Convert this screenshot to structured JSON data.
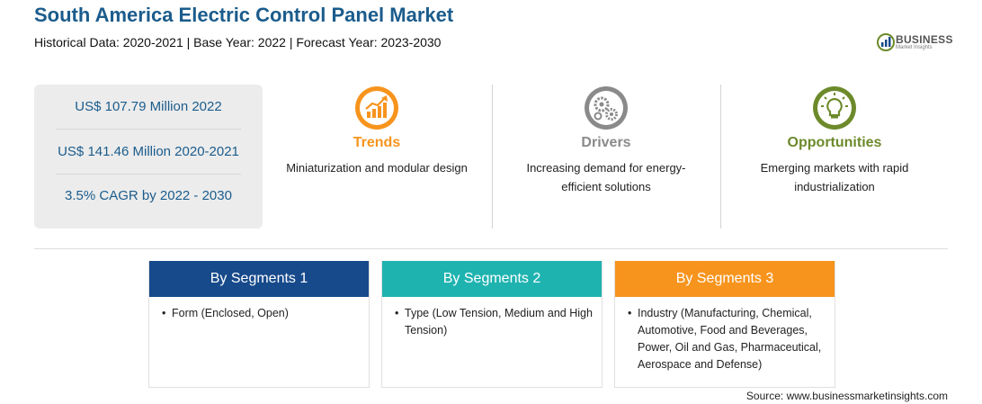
{
  "header": {
    "title": "South America Electric Control Panel Market",
    "subtitle": "Historical Data: 2020-2021 | Base Year: 2022 | Forecast Year: 2023-2030"
  },
  "logo": {
    "name": "BUSINESS",
    "tagline": "Market Insights"
  },
  "stats": [
    "US$ 107.79 Million 2022",
    "US$ 141.46 Million 2020-2021",
    "3.5% CAGR by 2022 - 2030"
  ],
  "factors": [
    {
      "title": "Trends",
      "text": "Miniaturization and modular design",
      "color": "#f7941d",
      "icon": "trend-chart-icon"
    },
    {
      "title": "Drivers",
      "text": "Increasing demand for energy-efficient solutions",
      "color": "#8a8a8a",
      "icon": "gears-icon"
    },
    {
      "title": "Opportunities",
      "text": "Emerging markets with rapid industrialization",
      "color": "#6d8a2b",
      "icon": "lightbulb-icon"
    }
  ],
  "segments": [
    {
      "title": "By Segments 1",
      "color": "#174a8b",
      "items": [
        "Form (Enclosed, Open)"
      ]
    },
    {
      "title": "By Segments 2",
      "color": "#1fb3b0",
      "items": [
        "Type (Low Tension, Medium and High Tension)"
      ]
    },
    {
      "title": "By Segments 3",
      "color": "#f7941d",
      "items": [
        "Industry (Manufacturing, Chemical, Automotive, Food and Beverages, Power, Oil and Gas, Pharmaceutical, Aerospace and Defense)"
      ]
    }
  ],
  "source": "Source: www.businessmarketinsights.com"
}
